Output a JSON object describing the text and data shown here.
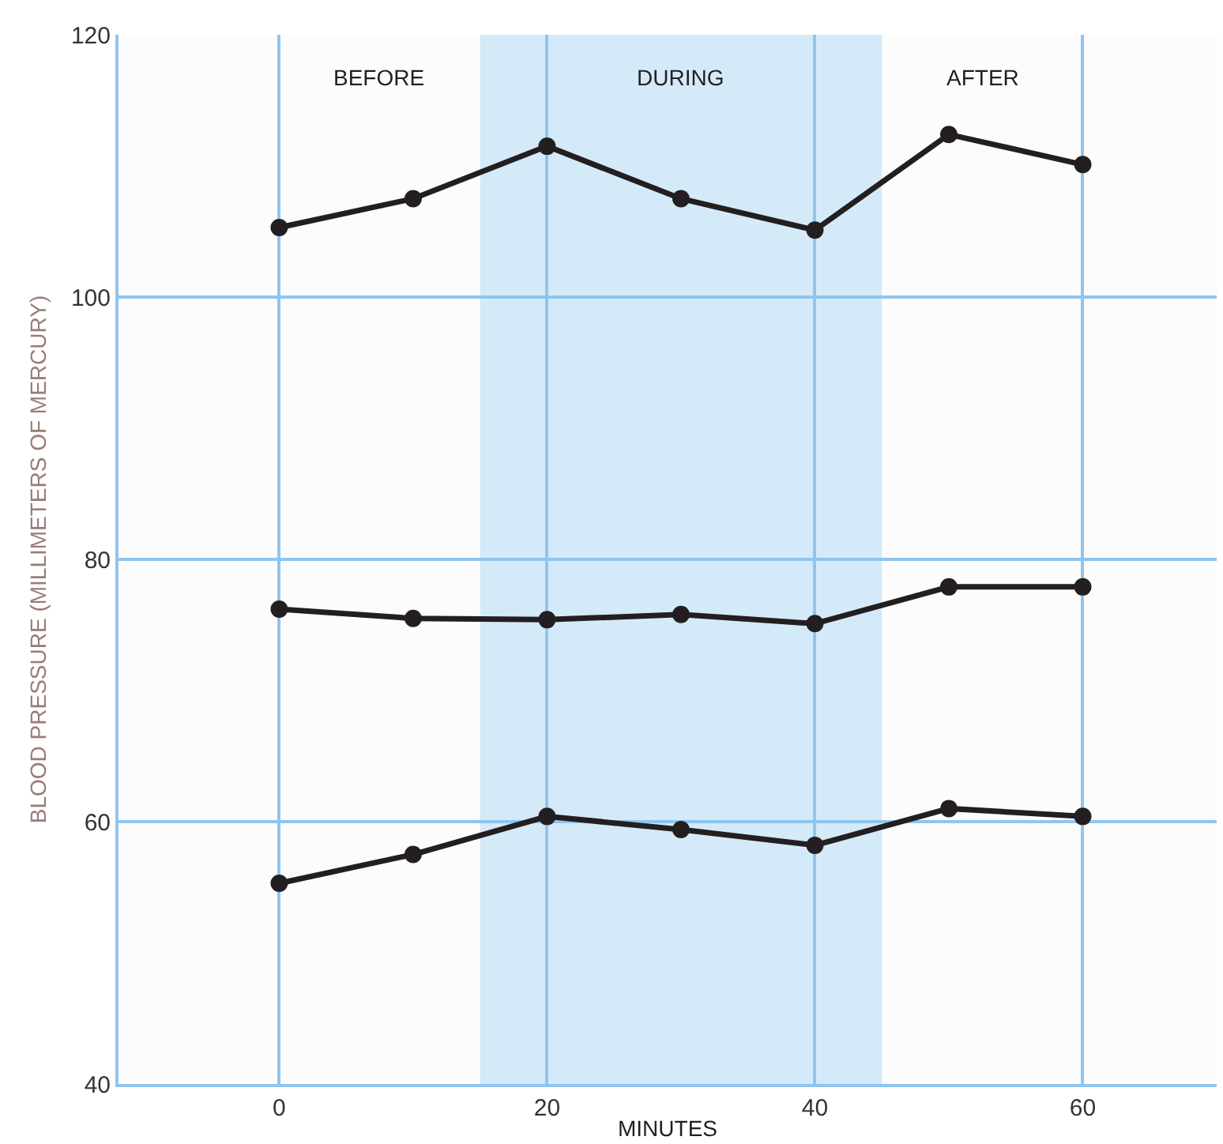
{
  "chart_data": {
    "type": "line",
    "xlabel": "MINUTES",
    "ylabel": "BLOOD PRESSURE (MILLIMETERS OF MERCURY)",
    "x": [
      0,
      10,
      20,
      30,
      40,
      50,
      60
    ],
    "series": [
      {
        "color": "#231f20",
        "values": [
          105.3,
          107.5,
          111.5,
          107.5,
          105.1,
          112.4,
          110.1
        ]
      },
      {
        "color": "#231f20",
        "values": [
          76.2,
          75.5,
          75.4,
          75.8,
          75.1,
          77.9,
          77.9
        ]
      },
      {
        "color": "#231f20",
        "values": [
          55.3,
          57.5,
          60.4,
          59.4,
          58.2,
          61.0,
          60.4
        ]
      }
    ],
    "xlim": [
      -12,
      70
    ],
    "xticks": [
      0,
      20,
      40,
      60
    ],
    "ylim": [
      40,
      120
    ],
    "yticks": [
      40,
      60,
      80,
      100,
      120
    ],
    "bands": [
      {
        "axis": "x",
        "from": 15,
        "to": 45,
        "label": "DURING",
        "color": "#d5eaf8"
      }
    ],
    "annotations": [
      "BEFORE",
      "AFTER"
    ],
    "grid": true,
    "marker": "circle",
    "line_style": "solid"
  }
}
